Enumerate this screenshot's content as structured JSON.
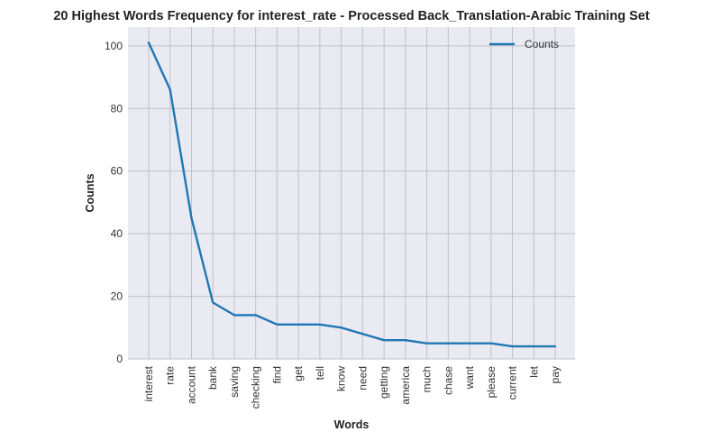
{
  "chart_data": {
    "type": "line",
    "title": "20 Highest Words Frequency for interest_rate - Processed Back_Translation-Arabic Training Set",
    "xlabel": "Words",
    "ylabel": "Counts",
    "categories": [
      "interest",
      "rate",
      "account",
      "bank",
      "saving",
      "checking",
      "find",
      "get",
      "tell",
      "know",
      "need",
      "getting",
      "america",
      "much",
      "chase",
      "want",
      "please",
      "current",
      "let",
      "pay"
    ],
    "series": [
      {
        "name": "Counts",
        "values": [
          101,
          86,
          45,
          18,
          14,
          14,
          11,
          11,
          11,
          10,
          8,
          6,
          6,
          5,
          5,
          5,
          5,
          4,
          4,
          4
        ],
        "color": "#1f77b4"
      }
    ],
    "ylim": [
      0,
      106
    ],
    "yticks": [
      0,
      20,
      40,
      60,
      80,
      100
    ],
    "grid": true,
    "legend_position": "top-right",
    "background_color": "#eaeaf2",
    "grid_color": "#c0c0c8"
  }
}
